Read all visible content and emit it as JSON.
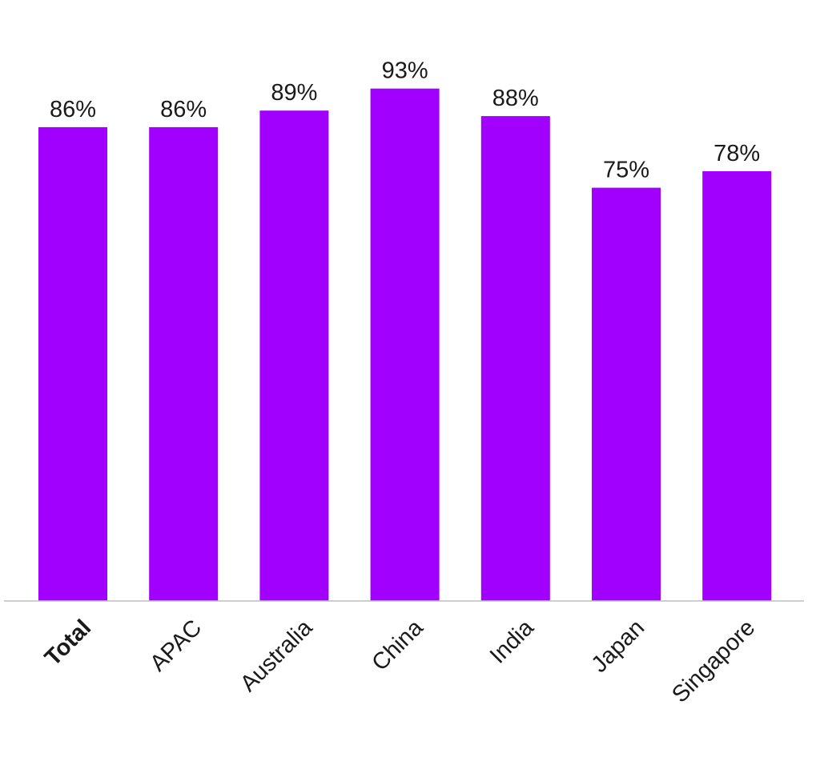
{
  "chart_data": {
    "type": "bar",
    "title": "",
    "xlabel": "",
    "ylabel": "",
    "categories": [
      "Total",
      "APAC",
      "Australia",
      "China",
      "India",
      "Japan",
      "Singapore"
    ],
    "values": [
      86,
      86,
      89,
      93,
      88,
      75,
      78
    ],
    "value_labels": [
      "86%",
      "86%",
      "89%",
      "93%",
      "88%",
      "75%",
      "78%"
    ],
    "unit": "%",
    "ylim": [
      0,
      100
    ],
    "grid": false,
    "legend": "none",
    "bold_categories": [
      "Total"
    ],
    "colors": {
      "bar": "#a100ff",
      "text": "#1a1a1a",
      "axis": "#bdbdbd"
    }
  }
}
